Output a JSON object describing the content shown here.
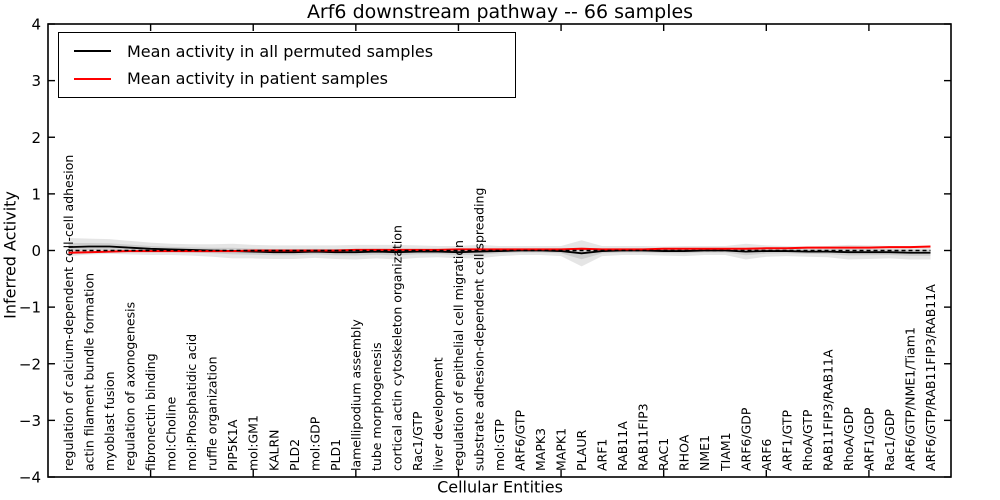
{
  "chart_data": {
    "type": "line",
    "title": "Arf6 downstream pathway -- 66 samples",
    "xlabel": "Cellular Entities",
    "ylabel": "Inferred Activity",
    "ylim": [
      -4,
      4
    ],
    "yticks": [
      "4",
      "3",
      "2",
      "1",
      "0",
      "−1",
      "−2",
      "−3",
      "−4"
    ],
    "x_major_tick_step": 5,
    "grid": false,
    "legend": {
      "position": "upper-left",
      "entries": [
        {
          "label": "Mean activity in all permuted samples",
          "color": "#000000"
        },
        {
          "label": "Mean activity in patient samples",
          "color": "#ff0000"
        }
      ]
    },
    "categories": [
      "regulation of calcium-dependent cell-cell adhesion",
      "actin filament bundle formation",
      "myoblast fusion",
      "regulation of axonogenesis",
      "fibronectin binding",
      "mol:Choline",
      "mol:Phosphatidic acid",
      "ruffle organization",
      "PIP5K1A",
      "mol:GM1",
      "KALRN",
      "PLD2",
      "mol:GDP",
      "PLD1",
      "lamellipodium assembly",
      "tube morphogenesis",
      "cortical actin cytoskeleton organization",
      "Rac1/GTP",
      "liver development",
      "regulation of epithelial cell migration",
      "substrate adhesion-dependent cell spreading",
      "mol:GTP",
      "ARF6/GTP",
      "MAPK3",
      "MAPK1",
      "PLAUR",
      "ARF1",
      "RAB11A",
      "RAB11FIP3",
      "RAC1",
      "RHOA",
      "NME1",
      "TIAM1",
      "ARF6/GDP",
      "ARF6",
      "ARF1/GTP",
      "RhoA/GTP",
      "RAB11FIP3/RAB11A",
      "RhoA/GDP",
      "ARF1/GDP",
      "Rac1/GDP",
      "ARF6/GTP/NME1/Tiam1",
      "ARF6/GTP/RAB11FIP3/RAB11A"
    ],
    "series": [
      {
        "name": "Mean activity in all permuted samples",
        "color": "#000000",
        "style": "solid",
        "values": [
          0.06,
          0.07,
          0.07,
          0.05,
          0.03,
          0.02,
          0.01,
          0.0,
          -0.01,
          -0.02,
          -0.03,
          -0.03,
          -0.02,
          -0.03,
          -0.03,
          -0.02,
          -0.03,
          -0.02,
          -0.02,
          -0.03,
          -0.02,
          -0.01,
          0.0,
          0.0,
          -0.01,
          -0.05,
          -0.01,
          0.0,
          0.0,
          -0.01,
          -0.01,
          0.0,
          0.0,
          -0.02,
          -0.01,
          -0.01,
          -0.02,
          -0.02,
          -0.03,
          -0.03,
          -0.03,
          -0.04,
          -0.04
        ]
      },
      {
        "name": "Mean activity in patient samples",
        "color": "#ff0000",
        "style": "solid",
        "values": [
          -0.04,
          -0.03,
          -0.02,
          -0.01,
          -0.01,
          -0.01,
          -0.01,
          -0.01,
          -0.01,
          0.0,
          0.0,
          0.0,
          0.0,
          0.0,
          0.01,
          0.01,
          0.01,
          0.01,
          0.01,
          0.02,
          0.02,
          0.02,
          0.02,
          0.02,
          0.02,
          0.03,
          0.02,
          0.02,
          0.02,
          0.03,
          0.03,
          0.03,
          0.03,
          0.03,
          0.04,
          0.04,
          0.05,
          0.05,
          0.05,
          0.05,
          0.06,
          0.06,
          0.07
        ]
      }
    ],
    "band": {
      "name": "permuted-sample spread around permuted mean",
      "color": "rgba(0,0,0,0.10)",
      "inner_ratio": 0.45,
      "half_width_outer": [
        0.16,
        0.14,
        0.13,
        0.12,
        0.11,
        0.1,
        0.1,
        0.11,
        0.13,
        0.12,
        0.12,
        0.12,
        0.11,
        0.12,
        0.13,
        0.12,
        0.13,
        0.11,
        0.1,
        0.11,
        0.12,
        0.09,
        0.08,
        0.08,
        0.09,
        0.23,
        0.09,
        0.08,
        0.08,
        0.08,
        0.09,
        0.08,
        0.08,
        0.14,
        0.1,
        0.09,
        0.09,
        0.1,
        0.13,
        0.12,
        0.11,
        0.12,
        0.12
      ]
    },
    "zero_line": {
      "value": 0,
      "style": "dashed",
      "color": "#000000"
    }
  }
}
